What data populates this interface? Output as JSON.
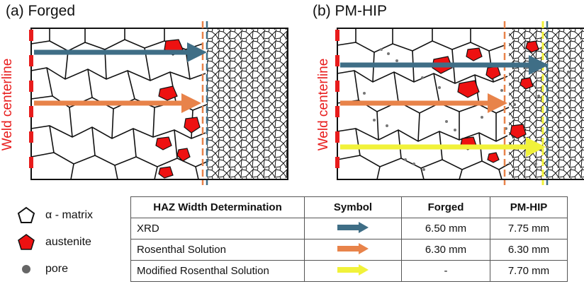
{
  "panels": {
    "a": {
      "title": "(a) Forged",
      "side_label": "Weld centerline"
    },
    "b": {
      "title": "(b) PM-HIP",
      "side_label": "Weld centerline"
    }
  },
  "colors": {
    "xrd": "#3f6e86",
    "rosenthal": "#e8834a",
    "modified": "#f1f23a",
    "austenite": "#ee1111",
    "centerline": "#e81c1c"
  },
  "legend": [
    {
      "icon": "pentagon-outline-icon",
      "label": "α - matrix"
    },
    {
      "icon": "pentagon-red-icon",
      "label": "austenite"
    },
    {
      "icon": "pore-dot-icon",
      "label": "pore"
    }
  ],
  "table": {
    "headers": [
      "HAZ Width Determination",
      "Symbol",
      "Forged",
      "PM-HIP"
    ],
    "rows": [
      {
        "label": "XRD",
        "symbol": "blue-arrow-icon",
        "forged": "6.50 mm",
        "pmhip": "7.75 mm"
      },
      {
        "label": "Rosenthal Solution",
        "symbol": "orange-arrow-icon",
        "forged": "6.30 mm",
        "pmhip": "6.30 mm"
      },
      {
        "label": "Modified Rosenthal Solution",
        "symbol": "yellow-arrow-icon",
        "forged": "-",
        "pmhip": "7.70 mm"
      }
    ]
  }
}
